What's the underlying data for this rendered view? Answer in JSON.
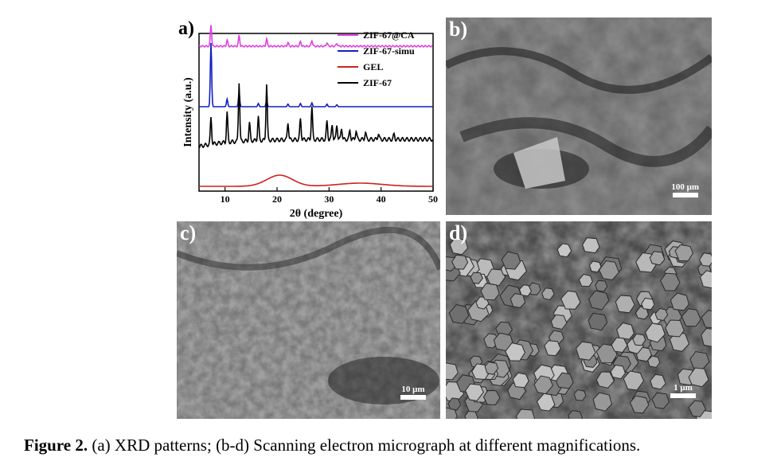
{
  "panels": {
    "a": {
      "label": "a)"
    },
    "b": {
      "label": "b)",
      "scale": "100 μm"
    },
    "c": {
      "label": "c)",
      "scale": "10 μm"
    },
    "d": {
      "label": "d)",
      "scale": "1 μm"
    }
  },
  "chart_data": {
    "type": "line",
    "title": "",
    "xlabel": "2θ (degree)",
    "ylabel": "Intensity (a.u.)",
    "xlim": [
      5,
      50
    ],
    "xticks": [
      10,
      20,
      30,
      40,
      50
    ],
    "grid": false,
    "legend_position": "top-right",
    "series": [
      {
        "name": "ZIF-67@CA",
        "color": "#e040e0",
        "peaks": [
          [
            7.3,
            0.9
          ],
          [
            10.4,
            0.25
          ],
          [
            12.7,
            0.45
          ],
          [
            18.0,
            0.3
          ],
          [
            22.1,
            0.15
          ],
          [
            24.5,
            0.2
          ],
          [
            26.7,
            0.25
          ],
          [
            29.6,
            0.15
          ],
          [
            31.5,
            0.12
          ]
        ]
      },
      {
        "name": "ZIF-67-simu",
        "color": "#1020c0",
        "peaks": [
          [
            7.3,
            1.0
          ],
          [
            10.4,
            0.12
          ],
          [
            12.7,
            0.22
          ],
          [
            16.4,
            0.05
          ],
          [
            18.0,
            0.1
          ],
          [
            22.1,
            0.04
          ],
          [
            24.5,
            0.05
          ],
          [
            26.7,
            0.06
          ],
          [
            29.6,
            0.04
          ],
          [
            31.5,
            0.03
          ]
        ]
      },
      {
        "name": "GEL",
        "color": "#d02020",
        "peaks": [
          [
            20.5,
            0.35
          ],
          [
            36,
            0.1
          ]
        ]
      },
      {
        "name": "ZIF-67",
        "color": "#000000",
        "peaks": [
          [
            7.3,
            0.45
          ],
          [
            10.4,
            0.5
          ],
          [
            12.7,
            1.0
          ],
          [
            14.7,
            0.3
          ],
          [
            16.4,
            0.4
          ],
          [
            18.0,
            0.95
          ],
          [
            22.1,
            0.3
          ],
          [
            24.5,
            0.35
          ],
          [
            26.7,
            0.55
          ],
          [
            29.6,
            0.3
          ],
          [
            30.6,
            0.25
          ],
          [
            31.5,
            0.25
          ],
          [
            32.4,
            0.2
          ],
          [
            34.0,
            0.15
          ],
          [
            35.2,
            0.15
          ],
          [
            37.0,
            0.12
          ],
          [
            39.5,
            0.1
          ],
          [
            42.5,
            0.08
          ]
        ]
      }
    ]
  },
  "caption": {
    "lead": "Figure 2.",
    "text": " (a) XRD patterns; (b-d) Scanning electron micrograph at different magnifications."
  }
}
